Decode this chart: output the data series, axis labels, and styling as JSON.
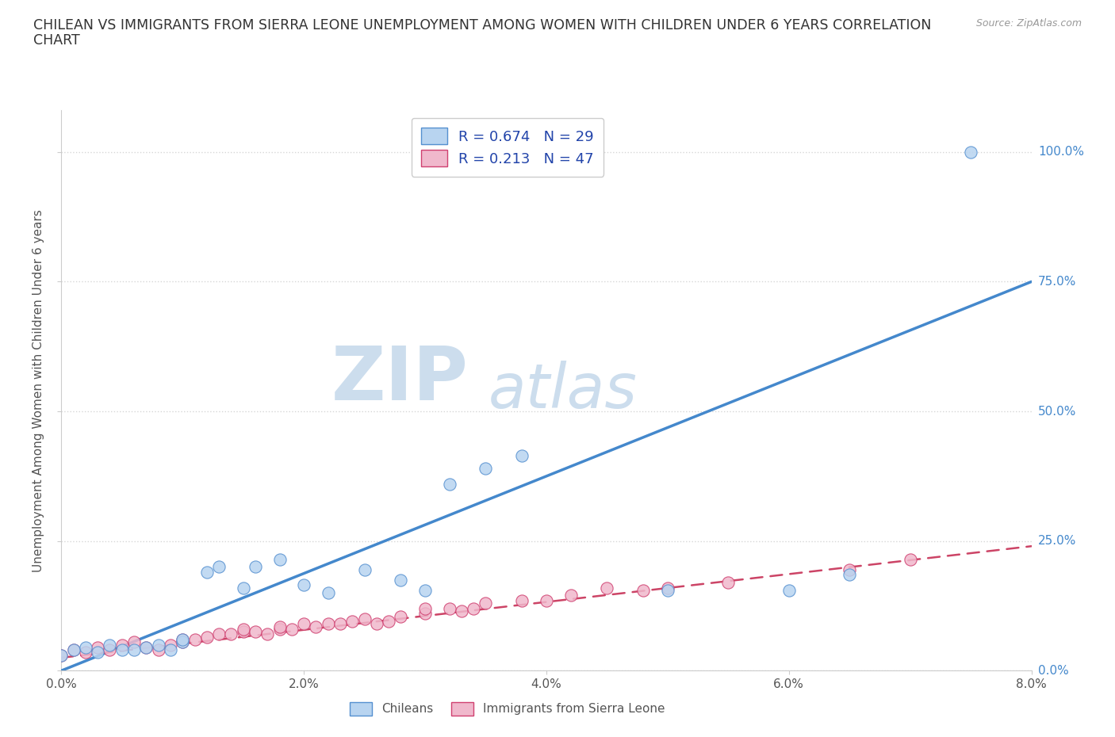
{
  "title_line1": "CHILEAN VS IMMIGRANTS FROM SIERRA LEONE UNEMPLOYMENT AMONG WOMEN WITH CHILDREN UNDER 6 YEARS CORRELATION",
  "title_line2": "CHART",
  "source": "Source: ZipAtlas.com",
  "ylabel": "Unemployment Among Women with Children Under 6 years",
  "xlim": [
    0.0,
    0.08
  ],
  "ylim": [
    0.0,
    1.08
  ],
  "xtick_labels": [
    "0.0%",
    "2.0%",
    "4.0%",
    "6.0%",
    "8.0%"
  ],
  "xtick_vals": [
    0.0,
    0.02,
    0.04,
    0.06,
    0.08
  ],
  "ytick_labels": [
    "0.0%",
    "25.0%",
    "50.0%",
    "75.0%",
    "100.0%"
  ],
  "ytick_vals": [
    0.0,
    0.25,
    0.5,
    0.75,
    1.0
  ],
  "r_chilean": 0.674,
  "n_chilean": 29,
  "r_sierra": 0.213,
  "n_sierra": 47,
  "color_chilean_fill": "#b8d4f0",
  "color_chilean_edge": "#5590d0",
  "color_sierra_fill": "#f0b8cc",
  "color_sierra_edge": "#d04070",
  "color_chilean_line": "#4488cc",
  "color_sierra_line": "#cc4466",
  "color_text_blue": "#2244aa",
  "watermark_color": "#dce8f5",
  "chilean_x": [
    0.0,
    0.001,
    0.002,
    0.003,
    0.004,
    0.005,
    0.006,
    0.007,
    0.008,
    0.009,
    0.01,
    0.01,
    0.012,
    0.013,
    0.015,
    0.016,
    0.018,
    0.02,
    0.022,
    0.025,
    0.028,
    0.03,
    0.032,
    0.035,
    0.038,
    0.05,
    0.06,
    0.065,
    0.075
  ],
  "chilean_y": [
    0.03,
    0.04,
    0.045,
    0.035,
    0.05,
    0.04,
    0.04,
    0.045,
    0.05,
    0.04,
    0.055,
    0.06,
    0.19,
    0.2,
    0.16,
    0.2,
    0.215,
    0.165,
    0.15,
    0.195,
    0.175,
    0.155,
    0.36,
    0.39,
    0.415,
    0.155,
    0.155,
    0.185,
    1.0
  ],
  "sierra_x": [
    0.0,
    0.001,
    0.002,
    0.003,
    0.004,
    0.005,
    0.006,
    0.007,
    0.008,
    0.009,
    0.01,
    0.01,
    0.011,
    0.012,
    0.013,
    0.014,
    0.015,
    0.015,
    0.016,
    0.017,
    0.018,
    0.018,
    0.019,
    0.02,
    0.021,
    0.022,
    0.023,
    0.024,
    0.025,
    0.026,
    0.027,
    0.028,
    0.03,
    0.03,
    0.032,
    0.033,
    0.034,
    0.035,
    0.038,
    0.04,
    0.042,
    0.045,
    0.048,
    0.05,
    0.055,
    0.065,
    0.07
  ],
  "sierra_y": [
    0.03,
    0.04,
    0.035,
    0.045,
    0.04,
    0.05,
    0.055,
    0.045,
    0.04,
    0.05,
    0.055,
    0.06,
    0.06,
    0.065,
    0.07,
    0.07,
    0.075,
    0.08,
    0.075,
    0.07,
    0.08,
    0.085,
    0.08,
    0.09,
    0.085,
    0.09,
    0.09,
    0.095,
    0.1,
    0.09,
    0.095,
    0.105,
    0.11,
    0.12,
    0.12,
    0.115,
    0.12,
    0.13,
    0.135,
    0.135,
    0.145,
    0.16,
    0.155,
    0.16,
    0.17,
    0.195,
    0.215
  ],
  "chilean_line_x": [
    0.0,
    0.08
  ],
  "chilean_line_y": [
    0.0,
    0.75
  ],
  "sierra_line_x": [
    0.0,
    0.08
  ],
  "sierra_line_y": [
    0.025,
    0.24
  ]
}
